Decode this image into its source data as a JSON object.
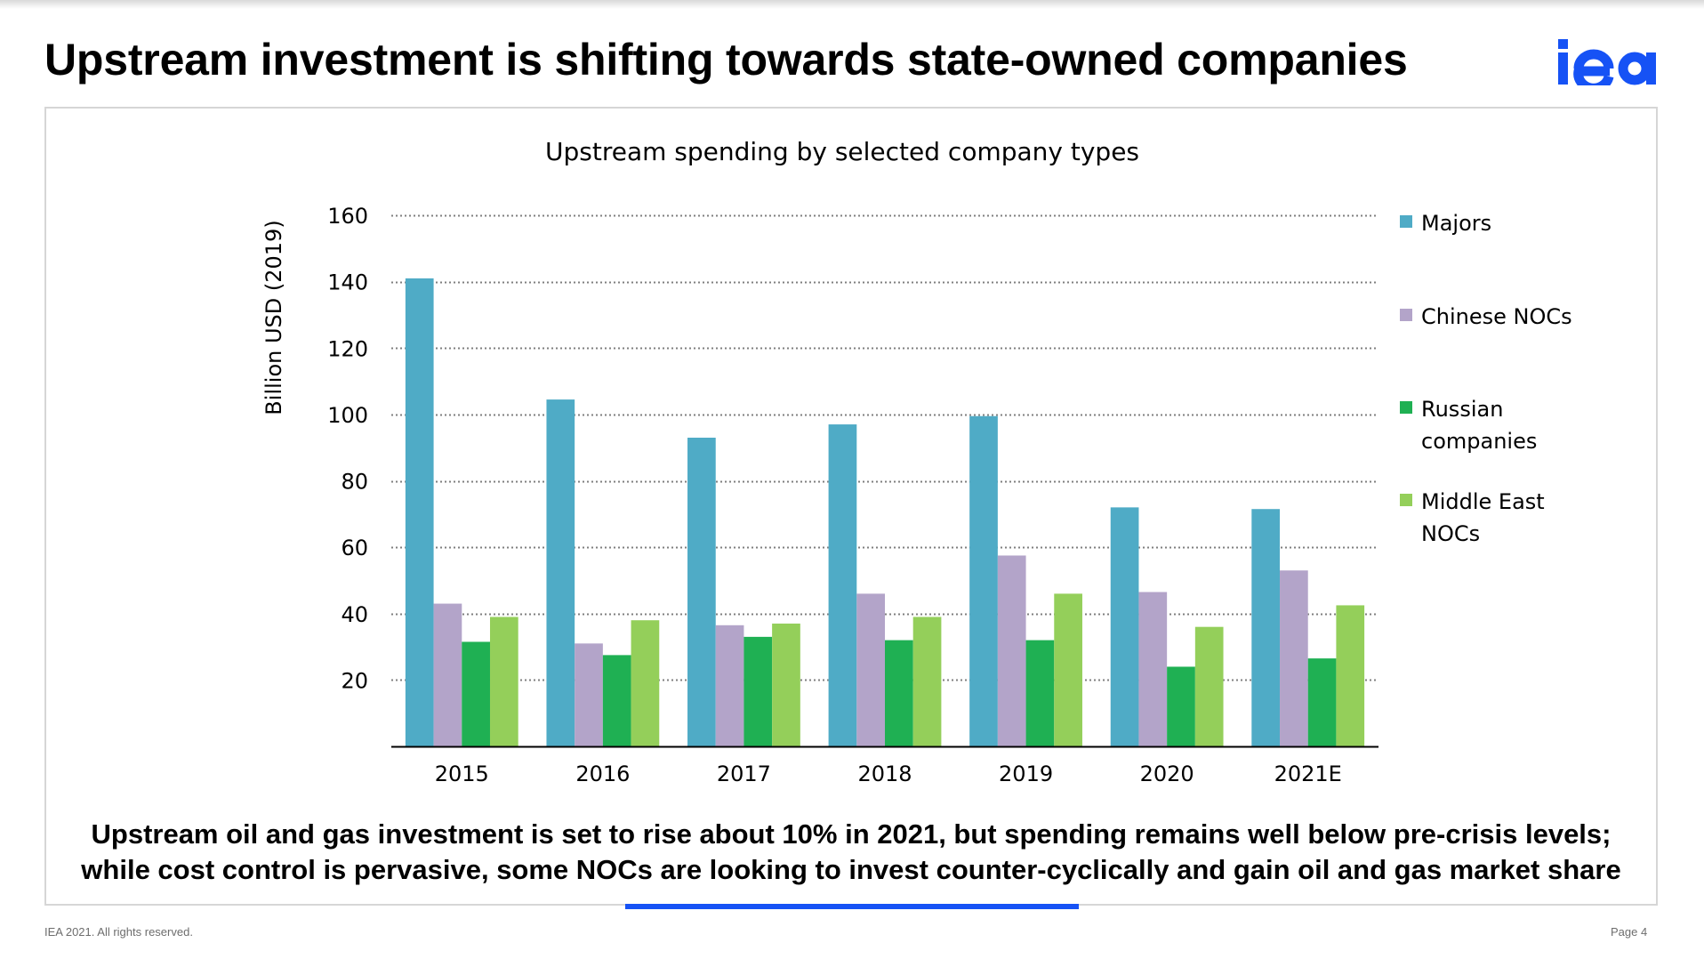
{
  "slide": {
    "title": "Upstream investment is shifting towards state-owned companies",
    "logo_text": "iea",
    "caption_line1": "Upstream oil and gas investment is set to rise about 10% in 2021, but spending remains well below pre-crisis levels;",
    "caption_line2": "while cost control is pervasive, some NOCs are looking to invest counter-cyclically and gain oil and gas market share",
    "footer_left": "IEA 2021. All rights reserved.",
    "footer_right": "Page 4"
  },
  "colors": {
    "logo": "#1652f5",
    "accent": "#1652f5",
    "axis": "#000000",
    "grid": "#7f7f7f"
  },
  "chart_data": {
    "type": "bar",
    "title": "Upstream spending by selected company types",
    "ylabel": "Billion USD (2019)",
    "xlabel": "",
    "ylim": [
      0,
      160
    ],
    "yticks": [
      20,
      40,
      60,
      80,
      100,
      120,
      140,
      160
    ],
    "grid": true,
    "grid_style": "dotted",
    "legend_position": "right",
    "categories": [
      "2015",
      "2016",
      "2017",
      "2018",
      "2019",
      "2020",
      "2021E"
    ],
    "series": [
      {
        "name": "Majors",
        "color": "#4fabc6",
        "values": [
          141,
          104.5,
          93,
          97,
          99.5,
          72,
          71.5
        ]
      },
      {
        "name": "Chinese NOCs",
        "color": "#b3a4c9",
        "values": [
          43,
          31,
          36.5,
          46,
          57.5,
          46.5,
          53
        ]
      },
      {
        "name": "Russian companies",
        "legend_lines": [
          "Russian",
          "companies"
        ],
        "color": "#1fb053",
        "values": [
          31.5,
          27.5,
          33,
          32,
          32,
          24,
          26.5
        ]
      },
      {
        "name": "Middle East NOCs",
        "legend_lines": [
          "Middle East",
          "NOCs"
        ],
        "color": "#94cf5a",
        "values": [
          39,
          38,
          37,
          39,
          46,
          36,
          42.5
        ]
      }
    ]
  }
}
